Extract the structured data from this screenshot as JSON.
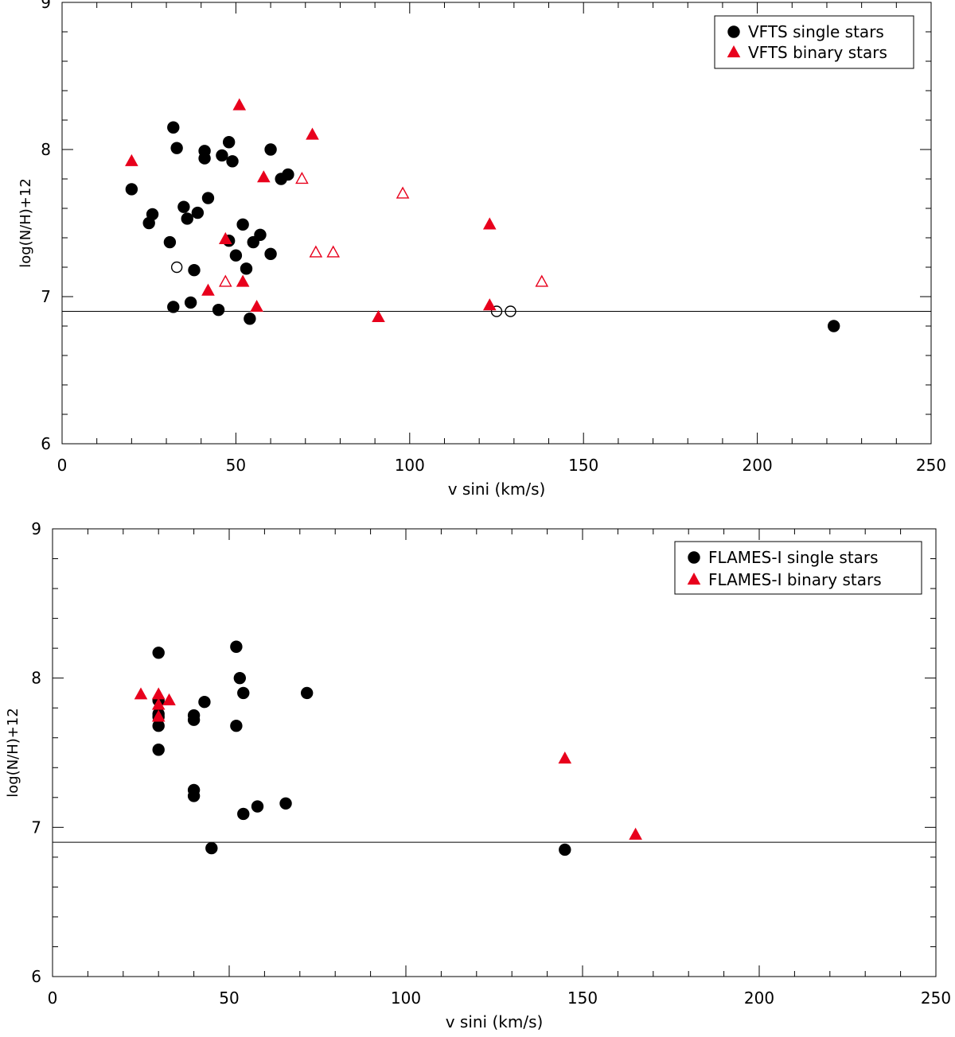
{
  "chart_data": [
    {
      "type": "scatter",
      "xlabel": "v sini (km/s)",
      "ylabel": "log(N/H)+12",
      "xlim": [
        0,
        250
      ],
      "ylim": [
        6,
        9
      ],
      "xticks": [
        0,
        50,
        100,
        150,
        200,
        250
      ],
      "yticks": [
        6,
        7,
        8,
        9
      ],
      "reference_line_y": 6.9,
      "legend_position": "top-right",
      "series": [
        {
          "name": "VFTS single stars",
          "marker": "filled-circle",
          "color": "#000000",
          "in_legend": true,
          "points": [
            [
              20,
              7.73
            ],
            [
              25,
              7.5
            ],
            [
              26,
              7.56
            ],
            [
              31,
              7.37
            ],
            [
              32,
              8.15
            ],
            [
              32,
              6.93
            ],
            [
              33,
              8.01
            ],
            [
              35,
              7.61
            ],
            [
              36,
              7.53
            ],
            [
              37,
              6.96
            ],
            [
              38,
              7.18
            ],
            [
              39,
              7.57
            ],
            [
              41,
              7.99
            ],
            [
              41,
              7.94
            ],
            [
              42,
              7.67
            ],
            [
              45,
              6.91
            ],
            [
              46,
              7.96
            ],
            [
              48,
              8.05
            ],
            [
              48,
              7.38
            ],
            [
              49,
              7.92
            ],
            [
              50,
              7.28
            ],
            [
              52,
              7.49
            ],
            [
              53,
              7.19
            ],
            [
              54,
              6.85
            ],
            [
              55,
              7.37
            ],
            [
              57,
              7.42
            ],
            [
              60,
              8.0
            ],
            [
              60,
              7.29
            ],
            [
              63,
              7.8
            ],
            [
              65,
              7.83
            ],
            [
              222,
              6.8
            ]
          ]
        },
        {
          "name": "",
          "marker": "open-circle",
          "color": "#000000",
          "in_legend": false,
          "points": [
            [
              33,
              7.2
            ],
            [
              125,
              6.9
            ],
            [
              129,
              6.9
            ]
          ]
        },
        {
          "name": "VFTS binary stars",
          "marker": "filled-triangle",
          "color": "#e8001c",
          "in_legend": true,
          "points": [
            [
              20,
              7.92
            ],
            [
              42,
              7.04
            ],
            [
              47,
              7.39
            ],
            [
              51,
              8.3
            ],
            [
              52,
              7.1
            ],
            [
              56,
              6.93
            ],
            [
              58,
              7.81
            ],
            [
              72,
              8.1
            ],
            [
              91,
              6.86
            ],
            [
              123,
              7.49
            ],
            [
              123,
              6.94
            ]
          ]
        },
        {
          "name": "",
          "marker": "open-triangle",
          "color": "#e8001c",
          "in_legend": false,
          "points": [
            [
              47,
              7.1
            ],
            [
              69,
              7.8
            ],
            [
              73,
              7.3
            ],
            [
              78,
              7.3
            ],
            [
              98,
              7.7
            ],
            [
              138,
              7.1
            ]
          ]
        }
      ]
    },
    {
      "type": "scatter",
      "xlabel": "v sini (km/s)",
      "ylabel": "log(N/H)+12",
      "xlim": [
        0,
        250
      ],
      "ylim": [
        6,
        9
      ],
      "xticks": [
        0,
        50,
        100,
        150,
        200,
        250
      ],
      "yticks": [
        6,
        7,
        8,
        9
      ],
      "reference_line_y": 6.9,
      "legend_position": "top-right",
      "series": [
        {
          "name": "FLAMES-I single stars",
          "marker": "filled-circle",
          "color": "#000000",
          "in_legend": true,
          "points": [
            [
              30,
              8.17
            ],
            [
              30,
              7.85
            ],
            [
              30,
              7.76
            ],
            [
              30,
              7.74
            ],
            [
              30,
              7.68
            ],
            [
              30,
              7.52
            ],
            [
              40,
              7.75
            ],
            [
              40,
              7.72
            ],
            [
              40,
              7.25
            ],
            [
              40,
              7.21
            ],
            [
              43,
              7.84
            ],
            [
              45,
              6.86
            ],
            [
              52,
              8.21
            ],
            [
              52,
              7.68
            ],
            [
              53,
              8.0
            ],
            [
              54,
              7.9
            ],
            [
              54,
              7.09
            ],
            [
              58,
              7.14
            ],
            [
              66,
              7.16
            ],
            [
              72,
              7.9
            ],
            [
              145,
              6.85
            ]
          ]
        },
        {
          "name": "FLAMES-I binary stars",
          "marker": "filled-triangle",
          "color": "#e8001c",
          "in_legend": true,
          "points": [
            [
              25,
              7.89
            ],
            [
              30,
              7.89
            ],
            [
              30,
              7.82
            ],
            [
              30,
              7.74
            ],
            [
              33,
              7.85
            ],
            [
              145,
              7.46
            ],
            [
              165,
              6.95
            ]
          ]
        }
      ]
    }
  ]
}
